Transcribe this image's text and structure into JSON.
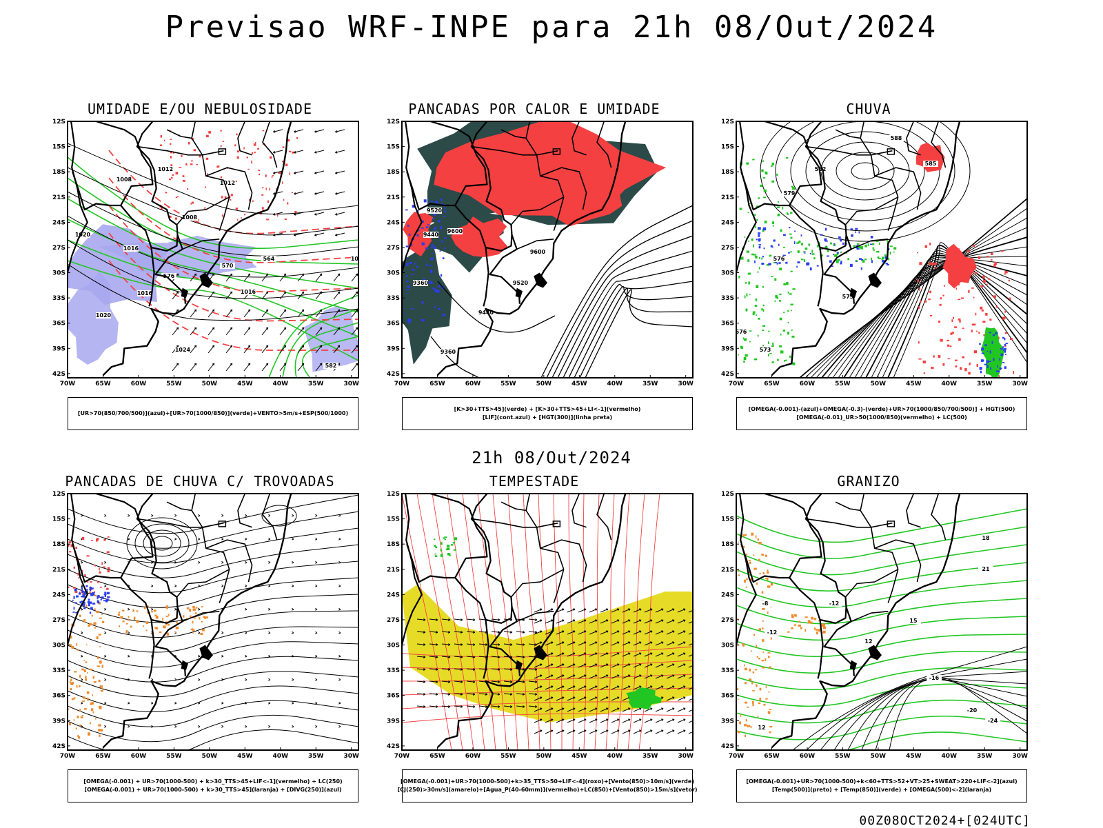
{
  "main_title": "Previsao WRF-INPE  para 21h 08/Out/2024",
  "mid_title": "21h 08/Out/2024",
  "footer_stamp": "00Z08OCT2024+[024UTC]",
  "axes": {
    "lat_labels": [
      "12S",
      "15S",
      "18S",
      "21S",
      "24S",
      "27S",
      "30S",
      "33S",
      "36S",
      "39S",
      "42S"
    ],
    "lon_labels": [
      "70W",
      "65W",
      "60W",
      "55W",
      "50W",
      "45W",
      "40W",
      "35W",
      "30W"
    ]
  },
  "colors": {
    "red": "#f44040",
    "green": "#22c622",
    "blue": "#2a3cf0",
    "lavender": "#a8a8f0",
    "orange": "#f08a2a",
    "yellow": "#e6dc28",
    "darkteal": "#2b4a48",
    "black": "#000000"
  },
  "panels": [
    {
      "id": "umidade",
      "title": "UMIDADE E/OU NEBULOSIDADE",
      "caption": [
        "[UR>70(850/700/500)](azul)+[UR>70(1000/850)](verde)+VENTO>5m/s+ESP(500/1000)"
      ],
      "contour_labels": [
        "1012",
        "1008",
        "1012",
        "1008",
        "1020",
        "1016",
        "1016",
        "1020",
        "1024",
        "1016",
        "1016",
        "564",
        "570",
        "576",
        "582"
      ]
    },
    {
      "id": "pancadas-calor",
      "title": "PANCADAS POR CALOR E UMIDADE",
      "caption": [
        "[K>30+TTS>45](verde) + [K>30+TTS>45+LI<-1](vermelho)",
        "[LIF](cont.azul) + [HGT(300)](linha preta)"
      ],
      "contour_labels": [
        "9520",
        "9600",
        "9440",
        "9360",
        "9520",
        "9440",
        "9600",
        "9360"
      ]
    },
    {
      "id": "chuva",
      "title": "CHUVA",
      "caption": [
        "[OMEGA(-0.001)-(azul)+OMEGA(-0.3)-(verde)+UR>70(1000/850/700/500)] + HGT(500)",
        "[OMEGA(-0.01)_UR>50(1000/850)(vermelho) + LC(500)"
      ],
      "contour_labels": [
        "588",
        "585",
        "582",
        "579",
        "576",
        "573",
        "576",
        "573"
      ]
    },
    {
      "id": "trovoadas",
      "title": "PANCADAS DE CHUVA C/ TROVOADAS",
      "caption": [
        "[OMEGA(-0.001) + UR>70(1000-500) + k>30_TTS>45+LIF<-1](vermelho) + LC(250)",
        "[OMEGA(-0.001) + UR>70(1000-500) + k>30_TTS>45](laranja) + [DIVG(250)](azul)"
      ],
      "contour_labels": []
    },
    {
      "id": "tempestade",
      "title": "TEMPESTADE",
      "caption": [
        "[OMEGA(-0.001)+UR>70(1000-500)+k>35_TTS>50+LIF<-4](roxo)+[Vento(850)>10m/s](verde)",
        "[CJ(250)>30m/s](amarelo)+[Agua_P(40-60mm)](vermelho)+LC(850)+[Vento(850)>15m/s](vetor)"
      ],
      "contour_labels": []
    },
    {
      "id": "granizo",
      "title": "GRANIZO",
      "caption": [
        "[OMEGA(-0.001)+UR>70(1000-500)+k<60+TTS>52+VT>25+SWEAT>220+LIF<-2](azul)",
        "[Temp(500)](preto) + [Temp(850)](verde) + [OMEGA(500)<-2](laranja)"
      ],
      "contour_labels": [
        "-8",
        "-12",
        "-12",
        "-16",
        "-20",
        "-24",
        "12",
        "15",
        "18",
        "21",
        "12"
      ]
    }
  ],
  "chart_data": [
    {
      "type": "heatmap",
      "title": "UMIDADE E/OU NEBULOSIDADE",
      "x_range": [
        "70W",
        "30W"
      ],
      "y_range": [
        "12S",
        "42S"
      ]
    },
    {
      "type": "heatmap",
      "title": "PANCADAS POR CALOR E UMIDADE",
      "x_range": [
        "70W",
        "30W"
      ],
      "y_range": [
        "12S",
        "42S"
      ]
    },
    {
      "type": "heatmap",
      "title": "CHUVA",
      "x_range": [
        "70W",
        "30W"
      ],
      "y_range": [
        "12S",
        "42S"
      ]
    },
    {
      "type": "heatmap",
      "title": "PANCADAS DE CHUVA C/ TROVOADAS",
      "x_range": [
        "70W",
        "30W"
      ],
      "y_range": [
        "12S",
        "42S"
      ]
    },
    {
      "type": "heatmap",
      "title": "TEMPESTADE",
      "x_range": [
        "70W",
        "30W"
      ],
      "y_range": [
        "12S",
        "42S"
      ]
    },
    {
      "type": "heatmap",
      "title": "GRANIZO",
      "x_range": [
        "70W",
        "30W"
      ],
      "y_range": [
        "12S",
        "42S"
      ]
    }
  ]
}
